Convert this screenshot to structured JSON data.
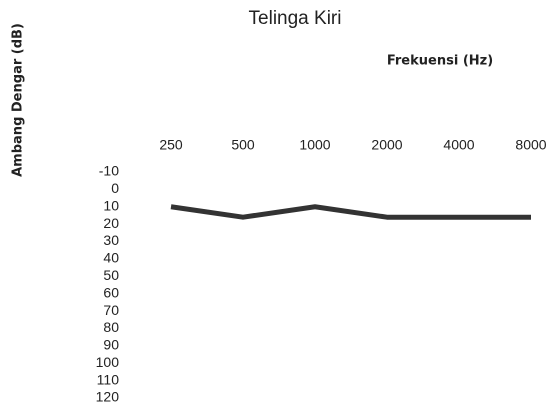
{
  "chart_data": {
    "type": "line",
    "title": "Telinga Kiri",
    "x_label": "Frekuensi (Hz)",
    "y_label": "Ambang Dengar (dB)",
    "categories": [
      "250",
      "500",
      "1000",
      "2000",
      "4000",
      "8000"
    ],
    "series": [
      {
        "name": "Telinga Kiri",
        "color": "#333333",
        "values": [
          10,
          16,
          10,
          16,
          16,
          16
        ]
      }
    ],
    "ylim": [
      -10,
      120
    ],
    "yticks": [
      -10,
      0,
      10,
      20,
      30,
      40,
      50,
      60,
      70,
      80,
      90,
      100,
      110,
      120
    ],
    "y_reversed": true,
    "x_axis_position": "top",
    "grid": false
  }
}
